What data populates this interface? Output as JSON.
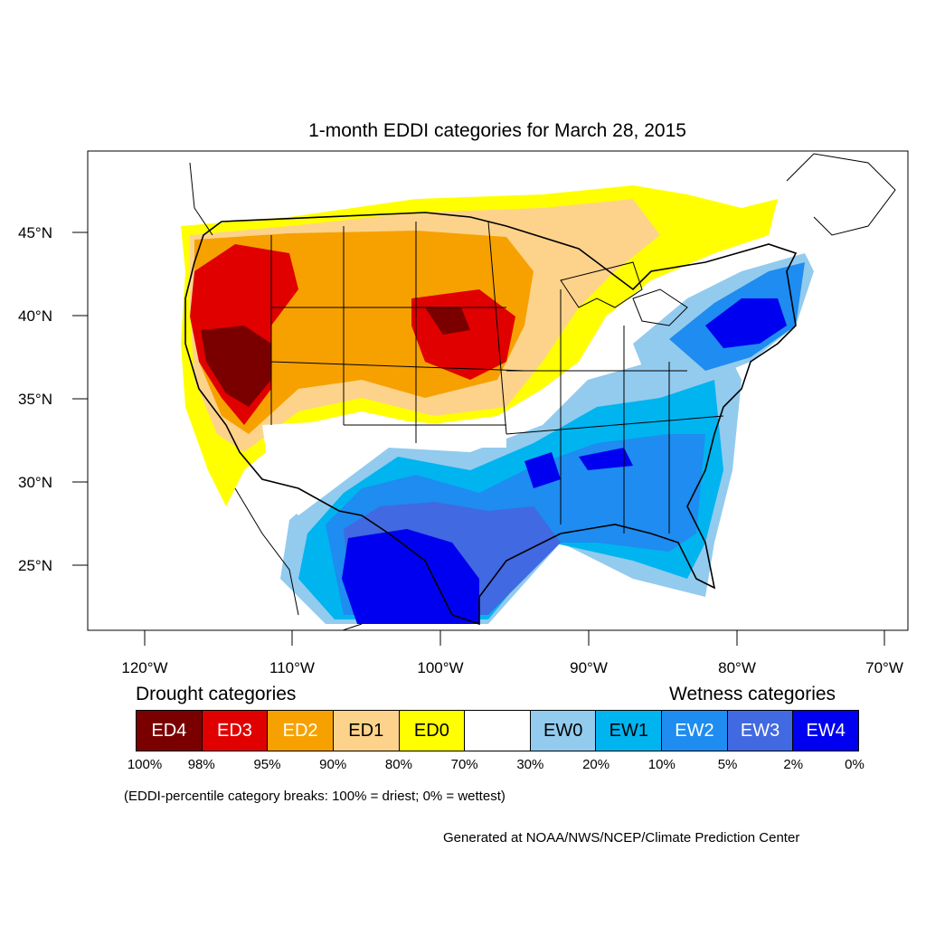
{
  "title": "1-month EDDI categories for March 28, 2015",
  "map": {
    "lat_labels": [
      "45°N",
      "40°N",
      "35°N",
      "30°N",
      "25°N"
    ],
    "lon_labels": [
      "120°W",
      "110°W",
      "100°W",
      "90°W",
      "80°W",
      "70°W"
    ]
  },
  "legend": {
    "drought_heading": "Drought categories",
    "wetness_heading": "Wetness categories",
    "categories": [
      {
        "label": "ED4",
        "color": "#7a0000",
        "text_color": "#ffffff"
      },
      {
        "label": "ED3",
        "color": "#e00000",
        "text_color": "#ffffff"
      },
      {
        "label": "ED2",
        "color": "#f7a100",
        "text_color": "#ffffff"
      },
      {
        "label": "ED1",
        "color": "#fdd38b",
        "text_color": "#000000"
      },
      {
        "label": "ED0",
        "color": "#ffff00",
        "text_color": "#000000"
      },
      {
        "label": "",
        "color": "#ffffff",
        "text_color": "#000000"
      },
      {
        "label": "EW0",
        "color": "#92cbee",
        "text_color": "#000000"
      },
      {
        "label": "EW1",
        "color": "#00b4f0",
        "text_color": "#000000"
      },
      {
        "label": "EW2",
        "color": "#1e8cf0",
        "text_color": "#ffffff"
      },
      {
        "label": "EW3",
        "color": "#4169e1",
        "text_color": "#ffffff"
      },
      {
        "label": "EW4",
        "color": "#0000f0",
        "text_color": "#ffffff"
      }
    ],
    "percentiles": [
      "100%",
      "98%",
      "95%",
      "90%",
      "80%",
      "70%",
      "30%",
      "20%",
      "10%",
      "5%",
      "2%",
      "0%"
    ]
  },
  "note": "(EDDI-percentile category breaks: 100% = driest; 0% = wettest)",
  "credit": "Generated at NOAA/NWS/NCEP/Climate Prediction Center"
}
